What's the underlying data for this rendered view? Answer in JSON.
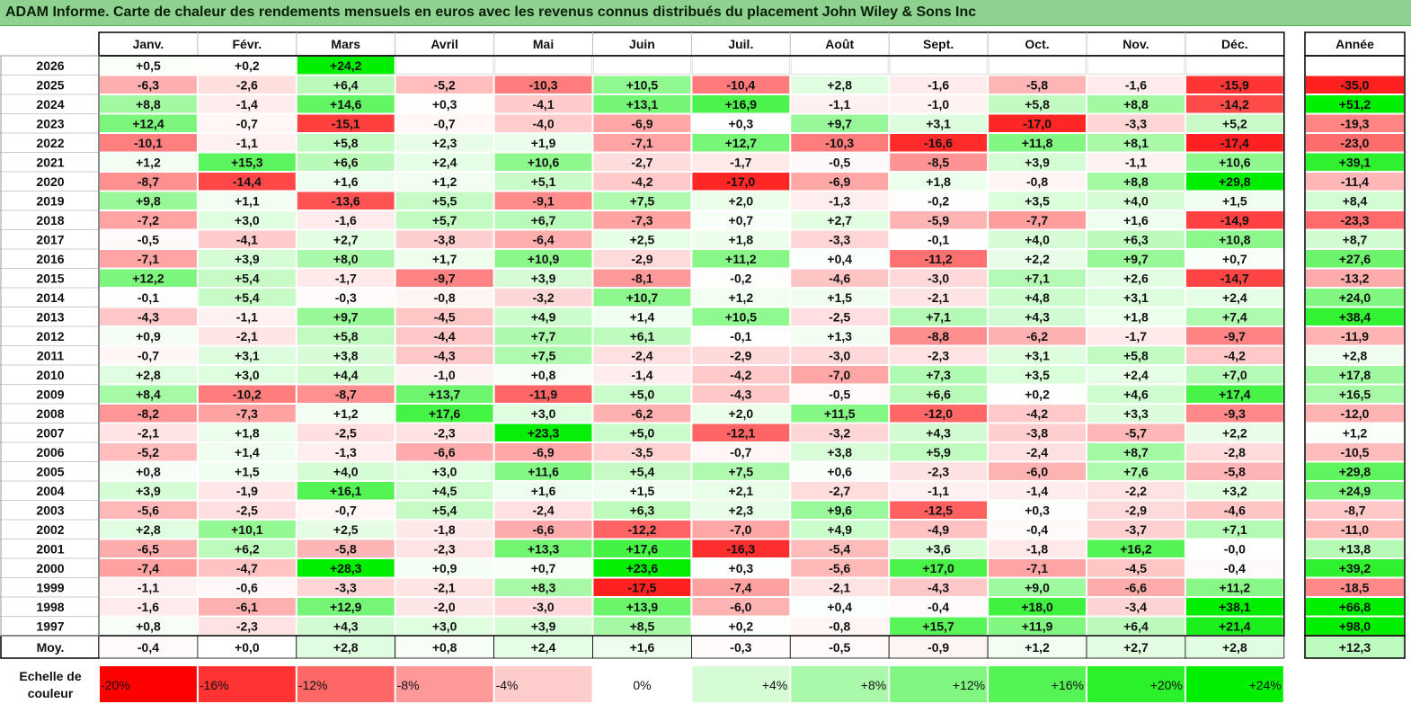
{
  "title": "ADAM Informe. Carte de chaleur des rendements mensuels en euros avec les revenus connus distribués du placement John Wiley & Sons Inc",
  "chart_data": {
    "type": "heatmap",
    "columns": [
      "Janv.",
      "Févr.",
      "Mars",
      "Avril",
      "Mai",
      "Juin",
      "Juil.",
      "Août",
      "Sept.",
      "Oct.",
      "Nov.",
      "Déc."
    ],
    "year_column_label": "Année",
    "rows": [
      {
        "year": "2026",
        "months": [
          "+0,5",
          "+0,2",
          "+24,2",
          "",
          "",
          "",
          "",
          "",
          "",
          "",
          "",
          ""
        ],
        "annual": ""
      },
      {
        "year": "2025",
        "months": [
          "-6,3",
          "-2,6",
          "+6,4",
          "-5,2",
          "-10,3",
          "+10,5",
          "-10,4",
          "+2,8",
          "-1,6",
          "-5,8",
          "-1,6",
          "-15,9"
        ],
        "annual": "-35,0"
      },
      {
        "year": "2024",
        "months": [
          "+8,8",
          "-1,4",
          "+14,6",
          "+0,3",
          "-4,1",
          "+13,1",
          "+16,9",
          "-1,1",
          "-1,0",
          "+5,8",
          "+8,8",
          "-14,2"
        ],
        "annual": "+51,2"
      },
      {
        "year": "2023",
        "months": [
          "+12,4",
          "-0,7",
          "-15,1",
          "-0,7",
          "-4,0",
          "-6,9",
          "+0,3",
          "+9,7",
          "+3,1",
          "-17,0",
          "-3,3",
          "+5,2"
        ],
        "annual": "-19,3"
      },
      {
        "year": "2022",
        "months": [
          "-10,1",
          "-1,1",
          "+5,8",
          "+2,3",
          "+1,9",
          "-7,1",
          "+12,7",
          "-10,3",
          "-16,6",
          "+11,8",
          "+8,1",
          "-17,4"
        ],
        "annual": "-23,0"
      },
      {
        "year": "2021",
        "months": [
          "+1,2",
          "+15,3",
          "+6,6",
          "+2,4",
          "+10,6",
          "-2,7",
          "-1,7",
          "-0,5",
          "-8,5",
          "+3,9",
          "-1,1",
          "+10,6"
        ],
        "annual": "+39,1"
      },
      {
        "year": "2020",
        "months": [
          "-8,7",
          "-14,4",
          "+1,6",
          "+1,2",
          "+5,1",
          "-4,2",
          "-17,0",
          "-6,9",
          "+1,8",
          "-0,8",
          "+8,8",
          "+29,8"
        ],
        "annual": "-11,4"
      },
      {
        "year": "2019",
        "months": [
          "+9,8",
          "+1,1",
          "-13,6",
          "+5,5",
          "-9,1",
          "+7,5",
          "+2,0",
          "-1,3",
          "-0,2",
          "+3,5",
          "+4,0",
          "+1,5"
        ],
        "annual": "+8,4"
      },
      {
        "year": "2018",
        "months": [
          "-7,2",
          "+3,0",
          "-1,6",
          "+5,7",
          "+6,7",
          "-7,3",
          "+0,7",
          "+2,7",
          "-5,9",
          "-7,7",
          "+1,6",
          "-14,9"
        ],
        "annual": "-23,3"
      },
      {
        "year": "2017",
        "months": [
          "-0,5",
          "-4,1",
          "+2,7",
          "-3,8",
          "-6,4",
          "+2,5",
          "+1,8",
          "-3,3",
          "-0,1",
          "+4,0",
          "+6,3",
          "+10,8"
        ],
        "annual": "+8,7"
      },
      {
        "year": "2016",
        "months": [
          "-7,1",
          "+3,9",
          "+8,0",
          "+1,7",
          "+10,9",
          "-2,9",
          "+11,2",
          "+0,4",
          "-11,2",
          "+2,2",
          "+9,7",
          "+0,7"
        ],
        "annual": "+27,6"
      },
      {
        "year": "2015",
        "months": [
          "+12,2",
          "+5,4",
          "-1,7",
          "-9,7",
          "+3,9",
          "-8,1",
          "-0,2",
          "-4,6",
          "-3,0",
          "+7,1",
          "+2,6",
          "-14,7"
        ],
        "annual": "-13,2"
      },
      {
        "year": "2014",
        "months": [
          "-0,1",
          "+5,4",
          "-0,3",
          "-0,8",
          "-3,2",
          "+10,7",
          "+1,2",
          "+1,5",
          "-2,1",
          "+4,8",
          "+3,1",
          "+2,4"
        ],
        "annual": "+24,0"
      },
      {
        "year": "2013",
        "months": [
          "-4,3",
          "-1,1",
          "+9,7",
          "-4,5",
          "+4,9",
          "+1,4",
          "+10,5",
          "-2,5",
          "+7,1",
          "+4,3",
          "+1,8",
          "+7,4"
        ],
        "annual": "+38,4"
      },
      {
        "year": "2012",
        "months": [
          "+0,9",
          "-2,1",
          "+5,8",
          "-4,4",
          "+7,7",
          "+6,1",
          "-0,1",
          "+1,3",
          "-8,8",
          "-6,2",
          "-1,7",
          "-9,7"
        ],
        "annual": "-11,9"
      },
      {
        "year": "2011",
        "months": [
          "-0,7",
          "+3,1",
          "+3,8",
          "-4,3",
          "+7,5",
          "-2,4",
          "-2,9",
          "-3,0",
          "-2,3",
          "+3,1",
          "+5,8",
          "-4,2"
        ],
        "annual": "+2,8"
      },
      {
        "year": "2010",
        "months": [
          "+2,8",
          "+3,0",
          "+4,4",
          "-1,0",
          "+0,8",
          "-1,4",
          "-4,2",
          "-7,0",
          "+7,3",
          "+3,5",
          "+2,4",
          "+7,0"
        ],
        "annual": "+17,8"
      },
      {
        "year": "2009",
        "months": [
          "+8,4",
          "-10,2",
          "-8,7",
          "+13,7",
          "-11,9",
          "+5,0",
          "-4,3",
          "-0,5",
          "+6,6",
          "+0,2",
          "+4,6",
          "+17,4"
        ],
        "annual": "+16,5"
      },
      {
        "year": "2008",
        "months": [
          "-8,2",
          "-7,3",
          "+1,2",
          "+17,6",
          "+3,0",
          "-6,2",
          "+2,0",
          "+11,5",
          "-12,0",
          "-4,2",
          "+3,3",
          "-9,3"
        ],
        "annual": "-12,0"
      },
      {
        "year": "2007",
        "months": [
          "-2,1",
          "+1,8",
          "-2,5",
          "-2,3",
          "+23,3",
          "+5,0",
          "-12,1",
          "-3,2",
          "+4,3",
          "-3,8",
          "-5,7",
          "+2,2"
        ],
        "annual": "+1,2"
      },
      {
        "year": "2006",
        "months": [
          "-5,2",
          "+1,4",
          "-1,3",
          "-6,6",
          "-6,9",
          "-3,5",
          "-0,7",
          "+3,8",
          "+5,9",
          "-2,4",
          "+8,7",
          "-2,8"
        ],
        "annual": "-10,5"
      },
      {
        "year": "2005",
        "months": [
          "+0,8",
          "+1,5",
          "+4,0",
          "+3,0",
          "+11,6",
          "+5,4",
          "+7,5",
          "+0,6",
          "-2,3",
          "-6,0",
          "+7,6",
          "-5,8"
        ],
        "annual": "+29,8"
      },
      {
        "year": "2004",
        "months": [
          "+3,9",
          "-1,9",
          "+16,1",
          "+4,5",
          "+1,6",
          "+1,5",
          "+2,1",
          "-2,7",
          "-1,1",
          "-1,4",
          "-2,2",
          "+3,2"
        ],
        "annual": "+24,9"
      },
      {
        "year": "2003",
        "months": [
          "-5,6",
          "-2,5",
          "-0,7",
          "+5,4",
          "-2,4",
          "+6,3",
          "+2,3",
          "+9,6",
          "-12,5",
          "+0,3",
          "-2,9",
          "-4,6"
        ],
        "annual": "-8,7"
      },
      {
        "year": "2002",
        "months": [
          "+2,8",
          "+10,1",
          "+2,5",
          "-1,8",
          "-6,6",
          "-12,2",
          "-7,0",
          "+4,9",
          "-4,9",
          "-0,4",
          "-3,7",
          "+7,1"
        ],
        "annual": "-11,0"
      },
      {
        "year": "2001",
        "months": [
          "-6,5",
          "+6,2",
          "-5,8",
          "-2,3",
          "+13,3",
          "+17,6",
          "-16,3",
          "-5,4",
          "+3,6",
          "-1,8",
          "+16,2",
          "-0,0"
        ],
        "annual": "+13,8"
      },
      {
        "year": "2000",
        "months": [
          "-7,4",
          "-4,7",
          "+28,3",
          "+0,9",
          "+0,7",
          "+23,6",
          "+0,3",
          "-5,6",
          "+17,0",
          "-7,1",
          "-4,5",
          "-0,4"
        ],
        "annual": "+39,2"
      },
      {
        "year": "1999",
        "months": [
          "-1,1",
          "-0,6",
          "-3,3",
          "-2,1",
          "+8,3",
          "-17,5",
          "-7,4",
          "-2,1",
          "-4,3",
          "+9,0",
          "-6,6",
          "+11,2"
        ],
        "annual": "-18,5"
      },
      {
        "year": "1998",
        "months": [
          "-1,6",
          "-6,1",
          "+12,9",
          "-2,0",
          "-3,0",
          "+13,9",
          "-6,0",
          "+0,4",
          "-0,4",
          "+18,0",
          "-3,4",
          "+38,1"
        ],
        "annual": "+66,8"
      },
      {
        "year": "1997",
        "months": [
          "+0,8",
          "-2,3",
          "+4,3",
          "+3,0",
          "+3,9",
          "+8,5",
          "+0,2",
          "-0,8",
          "+15,7",
          "+11,9",
          "+6,4",
          "+21,4"
        ],
        "annual": "+98,0"
      }
    ],
    "average_row": {
      "label": "Moy.",
      "months": [
        "-0,4",
        "+0,0",
        "+2,8",
        "+0,8",
        "+2,4",
        "+1,6",
        "-0,3",
        "-0,5",
        "-0,9",
        "+1,2",
        "+2,7",
        "+2,8"
      ],
      "annual": "+12,3"
    },
    "color_scale": {
      "label": "Echelle de couleur",
      "stops": [
        "-20%",
        "-16%",
        "-12%",
        "-8%",
        "-4%",
        "0%",
        "+4%",
        "+8%",
        "+12%",
        "+16%",
        "+20%",
        "+24%"
      ],
      "values": [
        -20,
        -16,
        -12,
        -8,
        -4,
        0,
        4,
        8,
        12,
        16,
        20,
        24
      ]
    },
    "colors": {
      "negative_max": "#ff0000",
      "neutral": "#ffffff",
      "positive_max": "#00ee00",
      "title_background": "#8fd18f"
    }
  }
}
